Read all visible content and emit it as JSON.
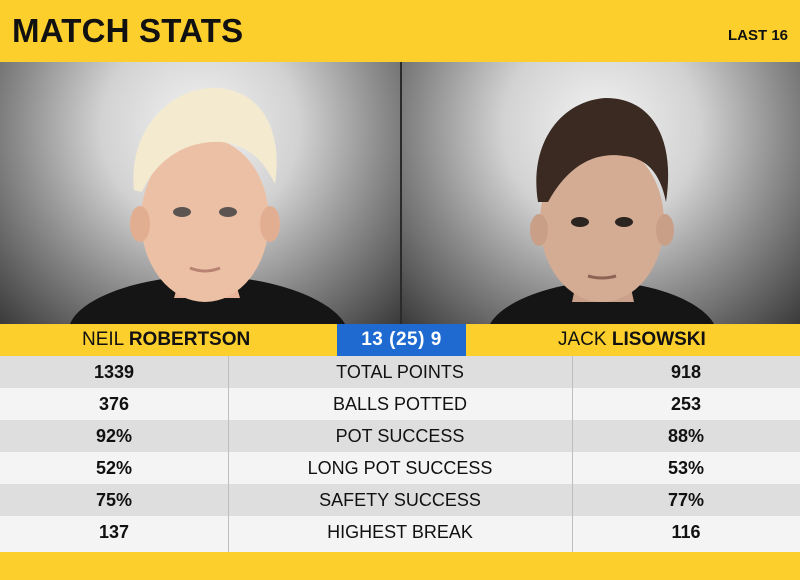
{
  "header": {
    "title": "MATCH STATS",
    "round": "LAST 16"
  },
  "players": {
    "left": {
      "first": "NEIL",
      "last": "ROBERTSON"
    },
    "right": {
      "first": "JACK",
      "last": "LISOWSKI"
    }
  },
  "score": "13 (25) 9",
  "stats": [
    {
      "label": "TOTAL POINTS",
      "left": "1339",
      "right": "918"
    },
    {
      "label": "BALLS POTTED",
      "left": "376",
      "right": "253"
    },
    {
      "label": "POT SUCCESS",
      "left": "92%",
      "right": "88%"
    },
    {
      "label": "LONG POT SUCCESS",
      "left": "52%",
      "right": "53%"
    },
    {
      "label": "SAFETY SUCCESS",
      "left": "75%",
      "right": "77%"
    },
    {
      "label": "HIGHEST BREAK",
      "left": "137",
      "right": "116"
    }
  ],
  "colors": {
    "accent": "#fccf2c",
    "score_bg": "#1e6ad1"
  }
}
